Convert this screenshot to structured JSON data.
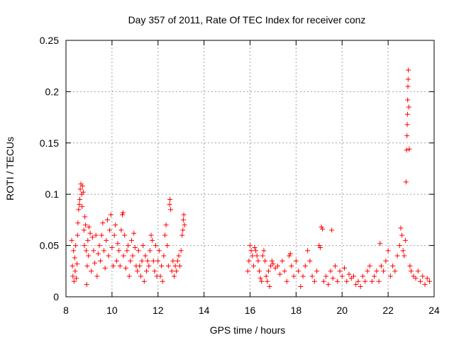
{
  "chart_data": {
    "type": "scatter",
    "title": "Day 357 of 2011, Rate Of TEC Index for receiver conz",
    "xlabel": "GPS time / hours",
    "ylabel": "ROTI / TECUs",
    "xlim": [
      8,
      24
    ],
    "ylim": [
      0,
      0.25
    ],
    "xticks": [
      8,
      10,
      12,
      14,
      16,
      18,
      20,
      22,
      24
    ],
    "yticks": [
      0,
      0.05,
      0.1,
      0.15,
      0.2,
      0.25
    ],
    "ytick_labels": [
      "0",
      "0.05",
      "0.1",
      "0.15",
      "0.2",
      "0.25"
    ],
    "grid": true,
    "marker": "+",
    "color": "#ff0000",
    "series": [
      {
        "points": [
          [
            8.25,
            0.055
          ],
          [
            8.28,
            0.03
          ],
          [
            8.3,
            0.02
          ],
          [
            8.33,
            0.045
          ],
          [
            8.35,
            0.015
          ],
          [
            8.38,
            0.038
          ],
          [
            8.4,
            0.025
          ],
          [
            8.42,
            0.05
          ],
          [
            8.45,
            0.018
          ],
          [
            8.48,
            0.032
          ],
          [
            8.5,
            0.06
          ],
          [
            8.52,
            0.072
          ],
          [
            8.55,
            0.085
          ],
          [
            8.58,
            0.09
          ],
          [
            8.6,
            0.095
          ],
          [
            8.62,
            0.105
          ],
          [
            8.65,
            0.11
          ],
          [
            8.68,
            0.1
          ],
          [
            8.7,
            0.088
          ],
          [
            8.72,
            0.108
          ],
          [
            8.75,
            0.102
          ],
          [
            8.78,
            0.065
          ],
          [
            8.8,
            0.05
          ],
          [
            8.82,
            0.078
          ],
          [
            8.85,
            0.07
          ],
          [
            8.88,
            0.045
          ],
          [
            8.9,
            0.012
          ],
          [
            8.92,
            0.03
          ],
          [
            8.95,
            0.055
          ],
          [
            8.98,
            0.04
          ],
          [
            9.0,
            0.068
          ],
          [
            9.05,
            0.062
          ],
          [
            9.1,
            0.025
          ],
          [
            9.15,
            0.058
          ],
          [
            9.2,
            0.045
          ],
          [
            9.25,
            0.033
          ],
          [
            9.3,
            0.06
          ],
          [
            9.35,
            0.02
          ],
          [
            9.4,
            0.042
          ],
          [
            9.45,
            0.05
          ],
          [
            9.5,
            0.035
          ],
          [
            9.55,
            0.06
          ],
          [
            9.6,
            0.072
          ],
          [
            9.65,
            0.045
          ],
          [
            9.7,
            0.028
          ],
          [
            9.75,
            0.055
          ],
          [
            9.8,
            0.075
          ],
          [
            9.85,
            0.04
          ],
          [
            9.9,
            0.065
          ],
          [
            9.95,
            0.08
          ],
          [
            10.0,
            0.048
          ],
          [
            10.05,
            0.03
          ],
          [
            10.1,
            0.06
          ],
          [
            10.15,
            0.07
          ],
          [
            10.2,
            0.035
          ],
          [
            10.25,
            0.052
          ],
          [
            10.3,
            0.045
          ],
          [
            10.35,
            0.03
          ],
          [
            10.4,
            0.065
          ],
          [
            10.45,
            0.08
          ],
          [
            10.48,
            0.082
          ],
          [
            10.5,
            0.04
          ],
          [
            10.55,
            0.06
          ],
          [
            10.6,
            0.028
          ],
          [
            10.65,
            0.045
          ],
          [
            10.7,
            0.05
          ],
          [
            10.75,
            0.02
          ],
          [
            10.8,
            0.035
          ],
          [
            10.85,
            0.055
          ],
          [
            10.9,
            0.04
          ],
          [
            10.95,
            0.062
          ],
          [
            11.0,
            0.048
          ],
          [
            11.05,
            0.03
          ],
          [
            11.1,
            0.025
          ],
          [
            11.15,
            0.045
          ],
          [
            11.2,
            0.03
          ],
          [
            11.25,
            0.02
          ],
          [
            11.3,
            0.035
          ],
          [
            11.35,
            0.05
          ],
          [
            11.4,
            0.015
          ],
          [
            11.45,
            0.04
          ],
          [
            11.5,
            0.025
          ],
          [
            11.55,
            0.035
          ],
          [
            11.6,
            0.03
          ],
          [
            11.65,
            0.045
          ],
          [
            11.7,
            0.06
          ],
          [
            11.75,
            0.055
          ],
          [
            11.8,
            0.035
          ],
          [
            11.85,
            0.025
          ],
          [
            11.9,
            0.05
          ],
          [
            11.95,
            0.02
          ],
          [
            12.0,
            0.035
          ],
          [
            12.05,
            0.045
          ],
          [
            12.1,
            0.02
          ],
          [
            12.15,
            0.03
          ],
          [
            12.2,
            0.015
          ],
          [
            12.25,
            0.04
          ],
          [
            12.3,
            0.06
          ],
          [
            12.35,
            0.07
          ],
          [
            12.4,
            0.05
          ],
          [
            12.45,
            0.03
          ],
          [
            12.5,
            0.09
          ],
          [
            12.52,
            0.095
          ],
          [
            12.55,
            0.085
          ],
          [
            12.6,
            0.025
          ],
          [
            12.65,
            0.035
          ],
          [
            12.7,
            0.02
          ],
          [
            12.75,
            0.03
          ],
          [
            12.8,
            0.025
          ],
          [
            12.85,
            0.035
          ],
          [
            12.9,
            0.04
          ],
          [
            12.95,
            0.03
          ],
          [
            13.0,
            0.045
          ],
          [
            13.05,
            0.06
          ],
          [
            13.08,
            0.065
          ],
          [
            13.1,
            0.075
          ],
          [
            13.12,
            0.08
          ],
          [
            13.15,
            0.07
          ],
          [
            15.9,
            0.025
          ],
          [
            15.95,
            0.035
          ],
          [
            16.0,
            0.05
          ],
          [
            16.05,
            0.045
          ],
          [
            16.1,
            0.04
          ],
          [
            16.15,
            0.03
          ],
          [
            16.2,
            0.048
          ],
          [
            16.25,
            0.045
          ],
          [
            16.3,
            0.04
          ],
          [
            16.35,
            0.035
          ],
          [
            16.4,
            0.025
          ],
          [
            16.45,
            0.018
          ],
          [
            16.5,
            0.015
          ],
          [
            16.55,
            0.04
          ],
          [
            16.6,
            0.045
          ],
          [
            16.65,
            0.035
          ],
          [
            16.7,
            0.02
          ],
          [
            16.75,
            0.015
          ],
          [
            16.8,
            0.025
          ],
          [
            16.85,
            0.01
          ],
          [
            16.9,
            0.03
          ],
          [
            16.95,
            0.035
          ],
          [
            17.0,
            0.032
          ],
          [
            17.1,
            0.028
          ],
          [
            17.2,
            0.03
          ],
          [
            17.3,
            0.022
          ],
          [
            17.4,
            0.035
          ],
          [
            17.5,
            0.025
          ],
          [
            17.6,
            0.015
          ],
          [
            17.7,
            0.04
          ],
          [
            17.75,
            0.042
          ],
          [
            17.8,
            0.03
          ],
          [
            17.9,
            0.02
          ],
          [
            18.0,
            0.035
          ],
          [
            18.1,
            0.025
          ],
          [
            18.2,
            0.01
          ],
          [
            18.3,
            0.02
          ],
          [
            18.4,
            0.03
          ],
          [
            18.5,
            0.045
          ],
          [
            18.6,
            0.035
          ],
          [
            18.7,
            0.02
          ],
          [
            18.8,
            0.015
          ],
          [
            18.9,
            0.025
          ],
          [
            19.0,
            0.05
          ],
          [
            19.05,
            0.048
          ],
          [
            19.1,
            0.068
          ],
          [
            19.15,
            0.066
          ],
          [
            19.2,
            0.015
          ],
          [
            19.3,
            0.02
          ],
          [
            19.4,
            0.012
          ],
          [
            19.5,
            0.025
          ],
          [
            19.55,
            0.065
          ],
          [
            19.6,
            0.018
          ],
          [
            19.7,
            0.03
          ],
          [
            19.8,
            0.015
          ],
          [
            19.9,
            0.025
          ],
          [
            20.0,
            0.02
          ],
          [
            20.1,
            0.028
          ],
          [
            20.2,
            0.015
          ],
          [
            20.3,
            0.022
          ],
          [
            20.4,
            0.018
          ],
          [
            20.5,
            0.02
          ],
          [
            20.6,
            0.012
          ],
          [
            20.7,
            0.015
          ],
          [
            20.8,
            0.01
          ],
          [
            20.9,
            0.02
          ],
          [
            21.0,
            0.015
          ],
          [
            21.1,
            0.025
          ],
          [
            21.2,
            0.03
          ],
          [
            21.3,
            0.015
          ],
          [
            21.4,
            0.02
          ],
          [
            21.5,
            0.025
          ],
          [
            21.6,
            0.015
          ],
          [
            21.65,
            0.052
          ],
          [
            21.7,
            0.03
          ],
          [
            21.8,
            0.025
          ],
          [
            21.9,
            0.035
          ],
          [
            22.0,
            0.045
          ],
          [
            22.1,
            0.02
          ],
          [
            22.2,
            0.03
          ],
          [
            22.3,
            0.025
          ],
          [
            22.4,
            0.04
          ],
          [
            22.5,
            0.05
          ],
          [
            22.55,
            0.067
          ],
          [
            22.6,
            0.06
          ],
          [
            22.65,
            0.045
          ],
          [
            22.7,
            0.04
          ],
          [
            22.75,
            0.055
          ],
          [
            22.78,
            0.112
          ],
          [
            22.8,
            0.143
          ],
          [
            22.82,
            0.157
          ],
          [
            22.83,
            0.168
          ],
          [
            22.84,
            0.178
          ],
          [
            22.85,
            0.192
          ],
          [
            22.86,
            0.205
          ],
          [
            22.87,
            0.212
          ],
          [
            22.88,
            0.221
          ],
          [
            22.9,
            0.185
          ],
          [
            22.92,
            0.144
          ],
          [
            22.95,
            0.03
          ],
          [
            23.0,
            0.025
          ],
          [
            23.1,
            0.02
          ],
          [
            23.2,
            0.018
          ],
          [
            23.3,
            0.025
          ],
          [
            23.4,
            0.015
          ],
          [
            23.5,
            0.02
          ],
          [
            23.6,
            0.012
          ],
          [
            23.7,
            0.018
          ],
          [
            23.8,
            0.015
          ]
        ]
      }
    ]
  }
}
